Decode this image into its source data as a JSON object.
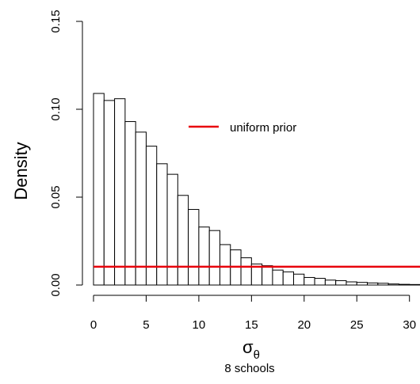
{
  "chart_data": {
    "type": "bar",
    "xlabel_symbol": "σ",
    "xlabel_subscript": "θ",
    "ylabel": "Density",
    "subtitle": "8 schools",
    "xlim": [
      0,
      31
    ],
    "ylim": [
      0,
      0.15
    ],
    "x_ticks": [
      0,
      5,
      10,
      15,
      20,
      25,
      30
    ],
    "x_tick_labels": [
      "0",
      "5",
      "10",
      "15",
      "20",
      "25",
      "30"
    ],
    "y_ticks": [
      0.0,
      0.05,
      0.1,
      0.15
    ],
    "y_tick_labels": [
      "0.00",
      "0.05",
      "0.10",
      "0.15"
    ],
    "bin_width": 1,
    "bin_starts": [
      0,
      1,
      2,
      3,
      4,
      5,
      6,
      7,
      8,
      9,
      10,
      11,
      12,
      13,
      14,
      15,
      16,
      17,
      18,
      19,
      20,
      21,
      22,
      23,
      24,
      25,
      26,
      27,
      28,
      29,
      30
    ],
    "values": [
      0.109,
      0.105,
      0.106,
      0.093,
      0.087,
      0.079,
      0.069,
      0.063,
      0.051,
      0.043,
      0.033,
      0.031,
      0.023,
      0.02,
      0.0155,
      0.012,
      0.011,
      0.0085,
      0.0075,
      0.0062,
      0.0043,
      0.0038,
      0.0028,
      0.0025,
      0.0018,
      0.0015,
      0.0012,
      0.001,
      0.0006,
      0.0004,
      0.0003
    ],
    "grid": false,
    "legend": {
      "placement": "upper-middle",
      "entries": [
        {
          "label": "uniform prior",
          "color": "#e8000b"
        }
      ]
    },
    "prior_line": {
      "y": 0.0104,
      "color": "#e8000b"
    }
  }
}
